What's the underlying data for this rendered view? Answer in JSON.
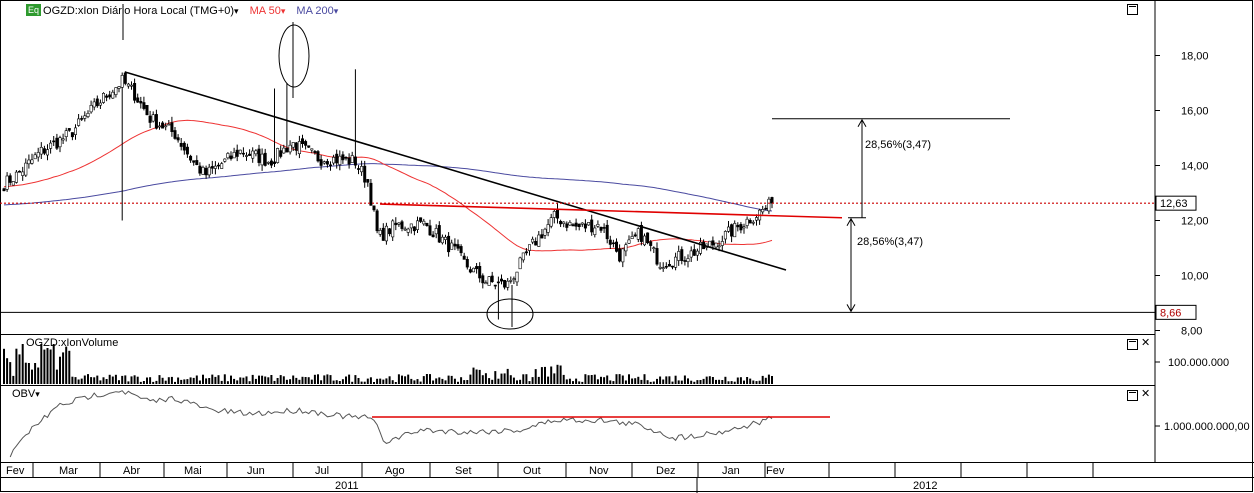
{
  "header": {
    "eq_badge": "Eq",
    "instrument": "OGZD:xIon Diário Hora Local (TMG+0)",
    "ma50_label": "MA 50",
    "ma200_label": "MA 200",
    "caret": "▾"
  },
  "volume_panel": {
    "title": "OGZD:xIonVolume"
  },
  "obv_panel": {
    "title": "OBV",
    "caret": "▾"
  },
  "annotations": {
    "upper_measure": "28,56%(3,47)",
    "lower_measure": "28,56%(3,47)"
  },
  "colors": {
    "ma50": "#ee3333",
    "ma200": "#4a4aa0",
    "trendline": "#000000",
    "neckline": "#e00000",
    "price_marker": "#cc0000",
    "eq_badge": "#2e9a2e",
    "year_axis_bg": "#ffffff"
  },
  "chart_data": [
    {
      "type": "candlestick",
      "ylim": [
        7.0,
        18.8
      ],
      "y_ticks": [
        "18,00",
        "16,00",
        "14,00",
        "12,00",
        "10,00",
        "8,00"
      ],
      "y_tick_values": [
        18,
        16,
        14,
        12,
        10,
        8
      ],
      "price_markers": [
        {
          "label": "12,63",
          "value": 12.63
        },
        {
          "label": "8,66",
          "value": 8.66
        }
      ],
      "x_months": [
        "Fev",
        "Mar",
        "Abr",
        "Mai",
        "Jun",
        "Jul",
        "Ago",
        "Set",
        "Out",
        "Nov",
        "Dez",
        "Jan",
        "Fev"
      ],
      "x_years": [
        "2011",
        "2012"
      ],
      "close_path_monthly": {
        "months": [
          "Fev",
          "Mar",
          "Abr",
          "Mai",
          "Jun",
          "Jul",
          "Ago",
          "Set",
          "Out",
          "Nov",
          "Dez",
          "Jan",
          "Fev"
        ],
        "close": [
          13.4,
          15.2,
          16.8,
          13.9,
          14.5,
          14.3,
          11.6,
          9.9,
          11.9,
          11.5,
          10.6,
          11.7,
          12.63
        ]
      },
      "trendline": {
        "start": [
          "Abr",
          17.4
        ],
        "end": [
          "Fev",
          10.2
        ]
      },
      "neckline": {
        "start": [
          "Ago",
          12.6
        ],
        "end": [
          "Fev",
          12.1
        ]
      },
      "support_level": 8.66,
      "target_level": 15.7,
      "measure_percent": "28,56%(3,47)"
    },
    {
      "type": "bar",
      "name": "Volume",
      "y_ticks": [
        "100.000.000"
      ],
      "y_tick_values": [
        100000000
      ]
    },
    {
      "type": "line",
      "name": "OBV",
      "y_ticks": [
        "1.000.000.000,00"
      ],
      "y_tick_values": [
        1000000000
      ]
    }
  ]
}
